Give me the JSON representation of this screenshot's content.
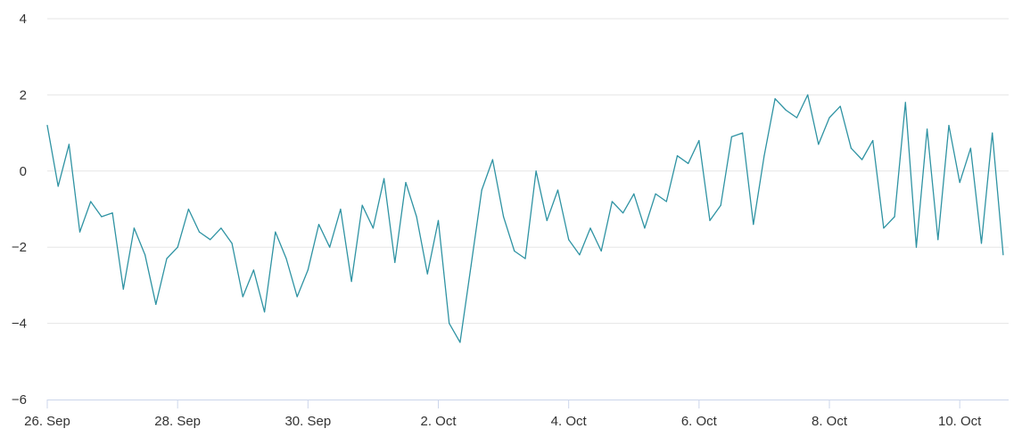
{
  "chart_data": {
    "type": "line",
    "title": "",
    "xlabel": "",
    "ylabel": "",
    "x_range": [
      "2023-09-26",
      "2023-10-10 18:00"
    ],
    "ylim": [
      -6,
      4
    ],
    "y_ticks": [
      4,
      2,
      0,
      -2,
      -4,
      -6
    ],
    "y_tick_labels": [
      "4",
      "2",
      "0",
      "−2",
      "−4",
      "−6"
    ],
    "x_ticks": [
      "2023-09-26",
      "2023-09-28",
      "2023-09-30",
      "2023-10-02",
      "2023-10-04",
      "2023-10-06",
      "2023-10-08",
      "2023-10-10"
    ],
    "x_tick_labels": [
      "26. Sep",
      "28. Sep",
      "30. Sep",
      "2. Oct",
      "4. Oct",
      "6. Oct",
      "8. Oct",
      "10. Oct"
    ],
    "grid": true,
    "legend": "none",
    "line_color": "#2f93a3",
    "series": [
      {
        "x": [
          "2023-09-26 00:00",
          "2023-09-26 04:00",
          "2023-09-26 08:00",
          "2023-09-26 12:00",
          "2023-09-26 16:00",
          "2023-09-26 20:00",
          "2023-09-27 00:00",
          "2023-09-27 04:00",
          "2023-09-27 08:00",
          "2023-09-27 12:00",
          "2023-09-27 16:00",
          "2023-09-27 20:00",
          "2023-09-28 00:00",
          "2023-09-28 04:00",
          "2023-09-28 08:00",
          "2023-09-28 12:00",
          "2023-09-28 16:00",
          "2023-09-28 20:00",
          "2023-09-29 00:00",
          "2023-09-29 04:00",
          "2023-09-29 08:00",
          "2023-09-29 12:00",
          "2023-09-29 16:00",
          "2023-09-29 20:00",
          "2023-09-30 00:00",
          "2023-09-30 04:00",
          "2023-09-30 08:00",
          "2023-09-30 12:00",
          "2023-09-30 16:00",
          "2023-09-30 20:00",
          "2023-10-01 00:00",
          "2023-10-01 04:00",
          "2023-10-01 08:00",
          "2023-10-01 12:00",
          "2023-10-01 16:00",
          "2023-10-01 20:00",
          "2023-10-02 00:00",
          "2023-10-02 04:00",
          "2023-10-02 08:00",
          "2023-10-02 12:00",
          "2023-10-02 16:00",
          "2023-10-02 20:00",
          "2023-10-03 00:00",
          "2023-10-03 04:00",
          "2023-10-03 08:00",
          "2023-10-03 12:00",
          "2023-10-03 16:00",
          "2023-10-03 20:00",
          "2023-10-04 00:00",
          "2023-10-04 04:00",
          "2023-10-04 08:00",
          "2023-10-04 12:00",
          "2023-10-04 16:00",
          "2023-10-04 20:00",
          "2023-10-05 00:00",
          "2023-10-05 04:00",
          "2023-10-05 08:00",
          "2023-10-05 12:00",
          "2023-10-05 16:00",
          "2023-10-05 20:00",
          "2023-10-06 00:00",
          "2023-10-06 04:00",
          "2023-10-06 08:00",
          "2023-10-06 12:00",
          "2023-10-06 16:00",
          "2023-10-06 20:00",
          "2023-10-07 00:00",
          "2023-10-07 04:00",
          "2023-10-07 08:00",
          "2023-10-07 12:00",
          "2023-10-07 16:00",
          "2023-10-07 20:00",
          "2023-10-08 00:00",
          "2023-10-08 04:00",
          "2023-10-08 08:00",
          "2023-10-08 12:00",
          "2023-10-08 16:00",
          "2023-10-08 20:00",
          "2023-10-09 00:00",
          "2023-10-09 04:00",
          "2023-10-09 08:00",
          "2023-10-09 12:00",
          "2023-10-09 16:00",
          "2023-10-09 20:00",
          "2023-10-10 00:00",
          "2023-10-10 04:00",
          "2023-10-10 08:00",
          "2023-10-10 12:00",
          "2023-10-10 16:00"
        ],
        "values": [
          1.2,
          -0.4,
          0.7,
          -1.6,
          -0.8,
          -1.2,
          -1.1,
          -3.1,
          -1.5,
          -2.2,
          -3.5,
          -2.3,
          -2.0,
          -1.0,
          -1.6,
          -1.8,
          -1.5,
          -1.9,
          -3.3,
          -2.6,
          -3.7,
          -1.6,
          -2.3,
          -3.3,
          -2.6,
          -1.4,
          -2.0,
          -1.0,
          -2.9,
          -0.9,
          -1.5,
          -0.2,
          -2.4,
          -0.3,
          -1.2,
          -2.7,
          -1.3,
          -4.0,
          -4.5,
          -2.5,
          -0.5,
          0.3,
          -1.2,
          -2.1,
          -2.3,
          0.0,
          -1.3,
          -0.5,
          -1.8,
          -2.2,
          -1.5,
          -2.1,
          -0.8,
          -1.1,
          -0.6,
          -1.5,
          -0.6,
          -0.8,
          0.4,
          0.2,
          0.8,
          -1.3,
          -0.9,
          0.9,
          1.0,
          -1.4,
          0.4,
          1.9,
          1.6,
          1.4,
          2.0,
          0.7,
          1.4,
          1.7,
          0.6,
          0.3,
          0.8,
          -1.5,
          -1.2,
          1.8,
          -2.0,
          1.1,
          -1.8,
          1.2,
          -0.3,
          0.6,
          -1.9,
          1.0,
          -2.2
        ]
      }
    ]
  }
}
